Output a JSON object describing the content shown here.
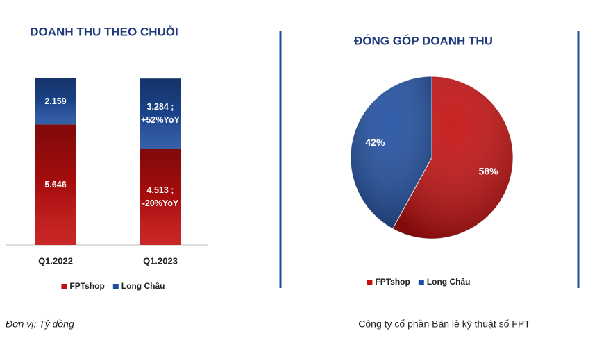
{
  "chart_data": [
    {
      "type": "bar",
      "stacked": true,
      "title": "DOANH THU THEO CHUỖI",
      "categories": [
        "Q1.2022",
        "Q1.2023"
      ],
      "series": [
        {
          "name": "FPTshop",
          "color": "#c40f0f",
          "values": [
            5646,
            4513
          ],
          "value_labels": [
            "5.646",
            "4.513 ; -20%YoY"
          ]
        },
        {
          "name": "Long Châu",
          "color": "#1f4ea0",
          "values": [
            2159,
            3284
          ],
          "value_labels": [
            "2.159",
            "3.284 ; +52%YoY"
          ]
        }
      ],
      "legend": "bottom"
    },
    {
      "type": "pie",
      "title": "ĐÓNG GÓP DOANH THU",
      "categories": [
        "FPTshop",
        "Long Châu"
      ],
      "values": [
        58,
        42
      ],
      "value_labels": [
        "58%",
        "42%"
      ],
      "colors": [
        "#c40f0f",
        "#1f4ea0"
      ],
      "legend": "bottom"
    }
  ],
  "footer": {
    "unit": "Đơn vị: Tỷ đồng",
    "source": "Công ty cổ phần Bán lẻ kỹ thuật số FPT"
  }
}
